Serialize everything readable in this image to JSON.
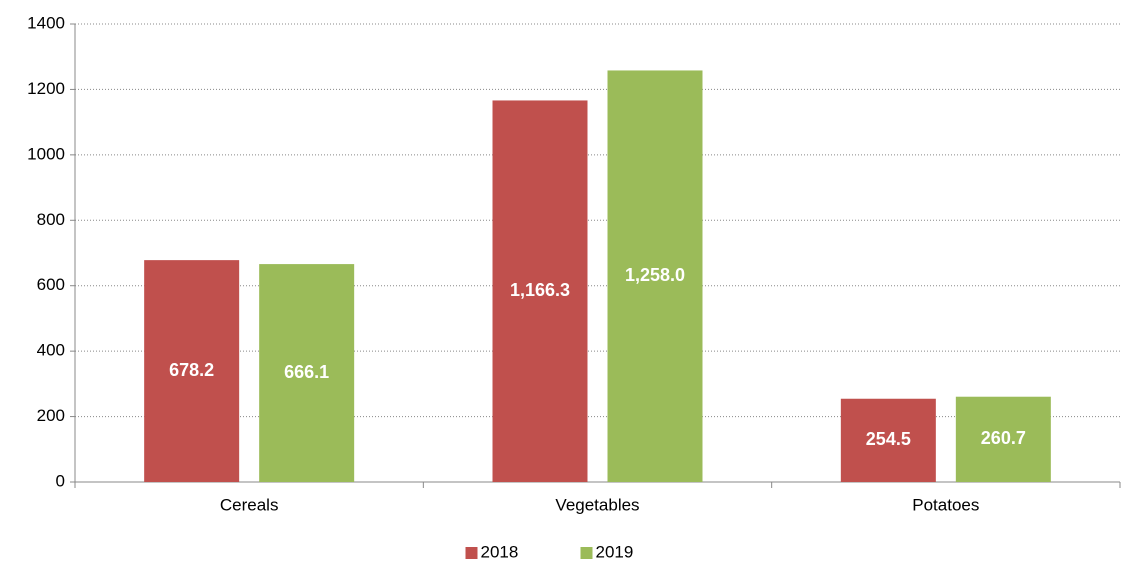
{
  "chart_data": {
    "type": "bar",
    "categories": [
      "Cereals",
      "Vegetables",
      "Potatoes"
    ],
    "series": [
      {
        "name": "2018",
        "color": "#c0504d",
        "values": [
          678.2,
          1166.3,
          254.5
        ],
        "value_labels": [
          "678.2",
          "1,166.3",
          "254.5"
        ]
      },
      {
        "name": "2019",
        "color": "#9bbb59",
        "values": [
          666.1,
          1258.0,
          260.7
        ],
        "value_labels": [
          "666.1",
          "1,258.0",
          "260.7"
        ]
      }
    ],
    "ylim": [
      0,
      1400
    ],
    "yticks": [
      0,
      200,
      400,
      600,
      800,
      1000,
      1200,
      1400
    ],
    "grid": true,
    "legend": "bottom"
  }
}
